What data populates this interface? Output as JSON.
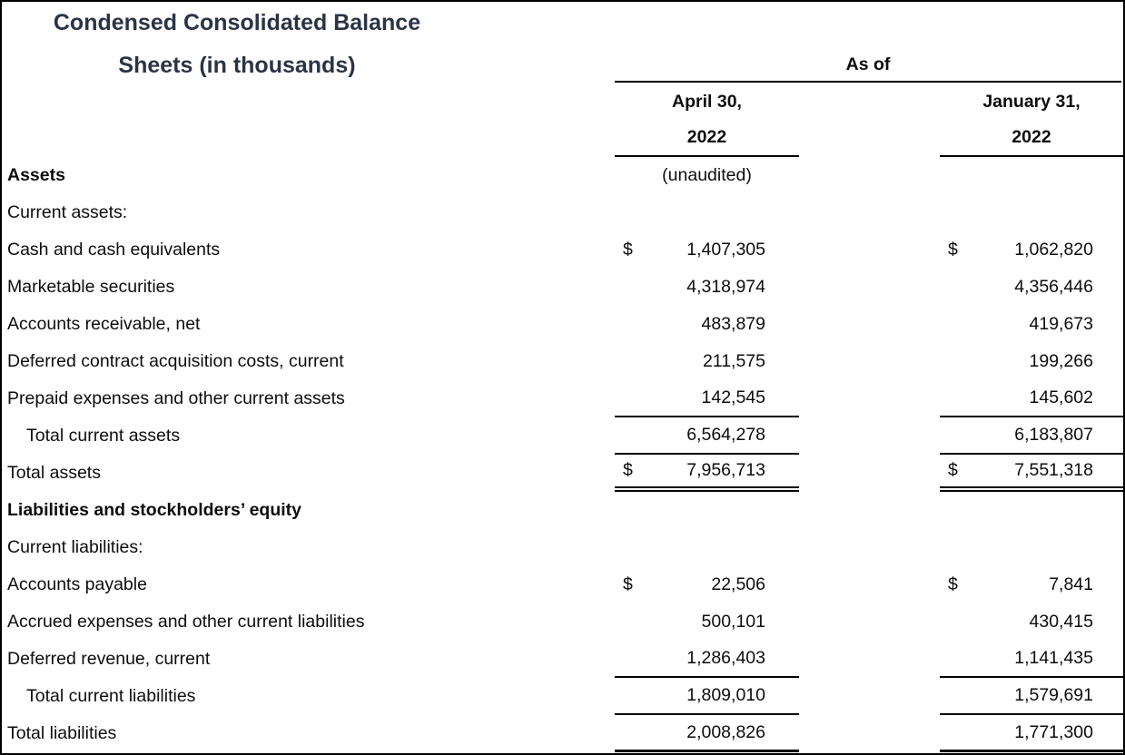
{
  "title": {
    "line1": "Condensed Consolidated Balance",
    "line2": "Sheets (in thousands)"
  },
  "header": {
    "as_of": "As of",
    "col_april": {
      "date_line1": "April 30,",
      "date_line2": "2022",
      "note": "(unaudited)"
    },
    "col_january": {
      "date_line1": "January 31,",
      "date_line2": "2022"
    }
  },
  "colors": {
    "title_text": "#2b3445",
    "body_text": "#0d0d0d",
    "rules": "#000000"
  },
  "rows": [
    {
      "label": "Assets"
    },
    {
      "label": "Current assets:"
    },
    {
      "label": "Cash and cash equivalents",
      "usd_apr": "$",
      "val_apr": "1,407,305",
      "usd_jan": "$",
      "val_jan": "1,062,820"
    },
    {
      "label": "Marketable securities",
      "val_apr": "4,318,974",
      "val_jan": "4,356,446"
    },
    {
      "label": "Accounts receivable, net",
      "val_apr": "483,879",
      "val_jan": "419,673"
    },
    {
      "label": "Deferred contract acquisition costs, current",
      "val_apr": "211,575",
      "val_jan": "199,266"
    },
    {
      "label": "Prepaid expenses and other current assets",
      "val_apr": "142,545",
      "val_jan": "145,602"
    },
    {
      "label": "Total current assets",
      "val_apr": "6,564,278",
      "val_jan": "6,183,807"
    },
    {
      "label": "Total assets",
      "usd_apr": "$",
      "val_apr": "7,956,713",
      "usd_jan": "$",
      "val_jan": "7,551,318"
    },
    {
      "label": "Liabilities and stockholders’ equity"
    },
    {
      "label": "Current liabilities:"
    },
    {
      "label": "Accounts payable",
      "usd_apr": "$",
      "val_apr": "22,506",
      "usd_jan": "$",
      "val_jan": "7,841"
    },
    {
      "label": "Accrued expenses and other current liabilities",
      "val_apr": "500,101",
      "val_jan": "430,415"
    },
    {
      "label": "Deferred revenue, current",
      "val_apr": "1,286,403",
      "val_jan": "1,141,435"
    },
    {
      "label": "Total current liabilities",
      "val_apr": "1,809,010",
      "val_jan": "1,579,691"
    },
    {
      "label": "Total liabilities",
      "val_apr": "2,008,826",
      "val_jan": "1,771,300"
    }
  ]
}
